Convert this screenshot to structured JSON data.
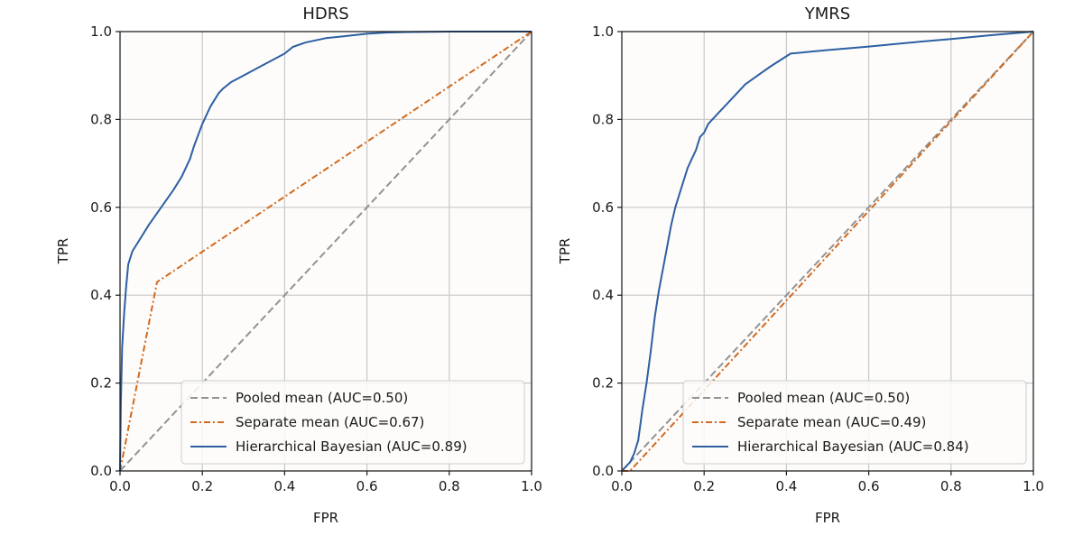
{
  "chart_data": [
    {
      "type": "line",
      "title": "HDRS",
      "xlabel": "FPR",
      "ylabel": "TPR",
      "xlim": [
        0,
        1
      ],
      "ylim": [
        0,
        1
      ],
      "xticks": [
        "0.0",
        "0.2",
        "0.4",
        "0.6",
        "0.8",
        "1.0"
      ],
      "yticks": [
        "0.0",
        "0.2",
        "0.4",
        "0.6",
        "0.8",
        "1.0"
      ],
      "grid": true,
      "legend_position": "lower-right",
      "series": [
        {
          "name": "Pooled mean (AUC=0.50)",
          "color": "#929292",
          "style": "dashed",
          "x": [
            0,
            1
          ],
          "y": [
            0,
            1
          ]
        },
        {
          "name": "Separate mean (AUC=0.67)",
          "color": "#d2691e",
          "style": "dashdot",
          "x": [
            0,
            0.09,
            1
          ],
          "y": [
            0,
            0.43,
            1
          ]
        },
        {
          "name": "Hierarchical Bayesian (AUC=0.89)",
          "color": "#2c5fa3",
          "style": "solid",
          "x": [
            0,
            0.002,
            0.005,
            0.01,
            0.015,
            0.02,
            0.03,
            0.05,
            0.07,
            0.1,
            0.13,
            0.15,
            0.17,
            0.18,
            0.2,
            0.22,
            0.24,
            0.25,
            0.27,
            0.3,
            0.33,
            0.35,
            0.38,
            0.4,
            0.42,
            0.45,
            0.5,
            0.55,
            0.6,
            0.65,
            0.7,
            0.8,
            0.9,
            1.0
          ],
          "y": [
            0,
            0.15,
            0.28,
            0.36,
            0.42,
            0.47,
            0.5,
            0.53,
            0.56,
            0.6,
            0.64,
            0.67,
            0.71,
            0.74,
            0.79,
            0.83,
            0.86,
            0.87,
            0.885,
            0.9,
            0.915,
            0.925,
            0.94,
            0.95,
            0.965,
            0.975,
            0.985,
            0.99,
            0.995,
            0.998,
            0.999,
            1.0,
            1.0,
            1.0
          ]
        }
      ],
      "legend_labels": [
        "Pooled mean (AUC=0.50)",
        "Separate mean (AUC=0.67)",
        "Hierarchical Bayesian (AUC=0.89)"
      ]
    },
    {
      "type": "line",
      "title": "YMRS",
      "xlabel": "FPR",
      "ylabel": "TPR",
      "xlim": [
        0,
        1
      ],
      "ylim": [
        0,
        1
      ],
      "xticks": [
        "0.0",
        "0.2",
        "0.4",
        "0.6",
        "0.8",
        "1.0"
      ],
      "yticks": [
        "0.0",
        "0.2",
        "0.4",
        "0.6",
        "0.8",
        "1.0"
      ],
      "grid": true,
      "legend_position": "lower-right",
      "series": [
        {
          "name": "Pooled mean (AUC=0.50)",
          "color": "#929292",
          "style": "dashed",
          "x": [
            0,
            1
          ],
          "y": [
            0,
            1
          ]
        },
        {
          "name": "Separate mean (AUC=0.49)",
          "color": "#d2691e",
          "style": "dashdot",
          "x": [
            0,
            0.02,
            1
          ],
          "y": [
            0,
            0,
            1
          ]
        },
        {
          "name": "Hierarchical Bayesian (AUC=0.84)",
          "color": "#2c5fa3",
          "style": "solid",
          "x": [
            0,
            0.01,
            0.02,
            0.03,
            0.04,
            0.05,
            0.06,
            0.07,
            0.08,
            0.09,
            0.1,
            0.11,
            0.12,
            0.13,
            0.14,
            0.15,
            0.16,
            0.17,
            0.18,
            0.19,
            0.2,
            0.21,
            0.22,
            0.24,
            0.26,
            0.28,
            0.3,
            0.33,
            0.36,
            0.41,
            0.5,
            0.6,
            0.7,
            0.8,
            0.9,
            1.0
          ],
          "y": [
            0,
            0.01,
            0.02,
            0.04,
            0.07,
            0.14,
            0.2,
            0.27,
            0.35,
            0.41,
            0.46,
            0.51,
            0.56,
            0.6,
            0.63,
            0.66,
            0.69,
            0.71,
            0.73,
            0.76,
            0.77,
            0.79,
            0.8,
            0.82,
            0.84,
            0.86,
            0.88,
            0.9,
            0.92,
            0.95,
            0.958,
            0.966,
            0.975,
            0.983,
            0.992,
            1.0
          ]
        }
      ],
      "legend_labels": [
        "Pooled mean (AUC=0.50)",
        "Separate mean (AUC=0.49)",
        "Hierarchical Bayesian (AUC=0.84)"
      ]
    }
  ]
}
